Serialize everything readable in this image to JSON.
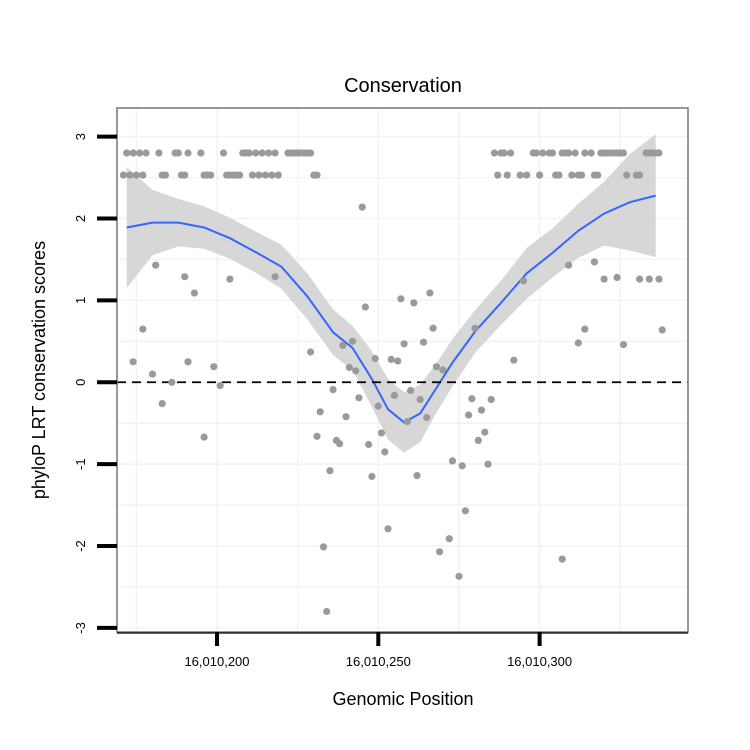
{
  "chart_data": {
    "type": "scatter",
    "title": "Conservation",
    "xlabel": "Genomic Position",
    "ylabel": "phyloP LRT conservation scores",
    "xlim": [
      16010169,
      16010346
    ],
    "ylim": [
      -3.05,
      3.35
    ],
    "x_ticks": [
      16010200,
      16010250,
      16010300
    ],
    "x_tick_labels": [
      "16,010,200",
      "16,010,250",
      "16,010,300"
    ],
    "y_ticks": [
      -3,
      -2,
      -1,
      0,
      1,
      2,
      3
    ],
    "y_tick_labels": [
      "-3",
      "-2",
      "-1",
      "0",
      "1",
      "2",
      "3"
    ],
    "reference_line": {
      "y": 0,
      "style": "dashed"
    },
    "grid": true,
    "colors": {
      "points": "#9a9a9a",
      "smooth_line": "#3366ff",
      "confidence_band": "#d3d3d3",
      "panel_border": "#7f7f7f",
      "grid": "#f2f2f2"
    },
    "points": [
      {
        "x": 16010171,
        "y": 2.53
      },
      {
        "x": 16010172,
        "y": 2.8
      },
      {
        "x": 16010173,
        "y": 2.53
      },
      {
        "x": 16010174,
        "y": 2.8
      },
      {
        "x": 16010175,
        "y": 2.53
      },
      {
        "x": 16010176,
        "y": 2.8
      },
      {
        "x": 16010177,
        "y": 2.53
      },
      {
        "x": 16010178,
        "y": 2.8
      },
      {
        "x": 16010182,
        "y": 2.8
      },
      {
        "x": 16010183,
        "y": 2.53
      },
      {
        "x": 16010184,
        "y": 2.53
      },
      {
        "x": 16010187,
        "y": 2.8
      },
      {
        "x": 16010188,
        "y": 2.8
      },
      {
        "x": 16010189,
        "y": 2.53
      },
      {
        "x": 16010190,
        "y": 2.53
      },
      {
        "x": 16010191,
        "y": 2.8
      },
      {
        "x": 16010195,
        "y": 2.8
      },
      {
        "x": 16010196,
        "y": 2.53
      },
      {
        "x": 16010197,
        "y": 2.53
      },
      {
        "x": 16010198,
        "y": 2.53
      },
      {
        "x": 16010202,
        "y": 2.8
      },
      {
        "x": 16010203,
        "y": 2.53
      },
      {
        "x": 16010204,
        "y": 2.53
      },
      {
        "x": 16010205,
        "y": 2.53
      },
      {
        "x": 16010206,
        "y": 2.53
      },
      {
        "x": 16010207,
        "y": 2.53
      },
      {
        "x": 16010208,
        "y": 2.8
      },
      {
        "x": 16010209,
        "y": 2.8
      },
      {
        "x": 16010210,
        "y": 2.8
      },
      {
        "x": 16010211,
        "y": 2.53
      },
      {
        "x": 16010212,
        "y": 2.8
      },
      {
        "x": 16010213,
        "y": 2.53
      },
      {
        "x": 16010214,
        "y": 2.8
      },
      {
        "x": 16010215,
        "y": 2.53
      },
      {
        "x": 16010216,
        "y": 2.8
      },
      {
        "x": 16010217,
        "y": 2.53
      },
      {
        "x": 16010218,
        "y": 2.8
      },
      {
        "x": 16010219,
        "y": 2.53
      },
      {
        "x": 16010222,
        "y": 2.8
      },
      {
        "x": 16010223,
        "y": 2.8
      },
      {
        "x": 16010224,
        "y": 2.8
      },
      {
        "x": 16010225,
        "y": 2.8
      },
      {
        "x": 16010226,
        "y": 2.8
      },
      {
        "x": 16010227,
        "y": 2.8
      },
      {
        "x": 16010228,
        "y": 2.8
      },
      {
        "x": 16010229,
        "y": 2.8
      },
      {
        "x": 16010230,
        "y": 2.53
      },
      {
        "x": 16010231,
        "y": 2.53
      },
      {
        "x": 16010286,
        "y": 2.8
      },
      {
        "x": 16010287,
        "y": 2.53
      },
      {
        "x": 16010288,
        "y": 2.8
      },
      {
        "x": 16010289,
        "y": 2.8
      },
      {
        "x": 16010290,
        "y": 2.53
      },
      {
        "x": 16010291,
        "y": 2.8
      },
      {
        "x": 16010294,
        "y": 2.53
      },
      {
        "x": 16010296,
        "y": 2.53
      },
      {
        "x": 16010298,
        "y": 2.8
      },
      {
        "x": 16010299,
        "y": 2.8
      },
      {
        "x": 16010300,
        "y": 2.53
      },
      {
        "x": 16010301,
        "y": 2.8
      },
      {
        "x": 16010303,
        "y": 2.8
      },
      {
        "x": 16010304,
        "y": 2.8
      },
      {
        "x": 16010305,
        "y": 2.53
      },
      {
        "x": 16010306,
        "y": 2.53
      },
      {
        "x": 16010307,
        "y": 2.8
      },
      {
        "x": 16010308,
        "y": 2.8
      },
      {
        "x": 16010309,
        "y": 2.8
      },
      {
        "x": 16010310,
        "y": 2.53
      },
      {
        "x": 16010311,
        "y": 2.8
      },
      {
        "x": 16010312,
        "y": 2.53
      },
      {
        "x": 16010313,
        "y": 2.53
      },
      {
        "x": 16010314,
        "y": 2.8
      },
      {
        "x": 16010316,
        "y": 2.8
      },
      {
        "x": 16010317,
        "y": 2.53
      },
      {
        "x": 16010318,
        "y": 2.53
      },
      {
        "x": 16010319,
        "y": 2.8
      },
      {
        "x": 16010320,
        "y": 2.8
      },
      {
        "x": 16010321,
        "y": 2.8
      },
      {
        "x": 16010322,
        "y": 2.8
      },
      {
        "x": 16010323,
        "y": 2.8
      },
      {
        "x": 16010324,
        "y": 2.8
      },
      {
        "x": 16010325,
        "y": 2.8
      },
      {
        "x": 16010326,
        "y": 2.8
      },
      {
        "x": 16010327,
        "y": 2.53
      },
      {
        "x": 16010330,
        "y": 2.53
      },
      {
        "x": 16010331,
        "y": 2.53
      },
      {
        "x": 16010333,
        "y": 2.8
      },
      {
        "x": 16010334,
        "y": 2.8
      },
      {
        "x": 16010335,
        "y": 2.8
      },
      {
        "x": 16010336,
        "y": 2.8
      },
      {
        "x": 16010337,
        "y": 2.8
      },
      {
        "x": 16010174,
        "y": 0.25
      },
      {
        "x": 16010177,
        "y": 0.65
      },
      {
        "x": 16010180,
        "y": 0.1
      },
      {
        "x": 16010181,
        "y": 1.43
      },
      {
        "x": 16010183,
        "y": -0.26
      },
      {
        "x": 16010186,
        "y": 0.0
      },
      {
        "x": 16010190,
        "y": 1.29
      },
      {
        "x": 16010191,
        "y": 0.25
      },
      {
        "x": 16010193,
        "y": 1.09
      },
      {
        "x": 16010196,
        "y": -0.67
      },
      {
        "x": 16010199,
        "y": 0.19
      },
      {
        "x": 16010201,
        "y": -0.04
      },
      {
        "x": 16010204,
        "y": 1.26
      },
      {
        "x": 16010218,
        "y": 1.29
      },
      {
        "x": 16010229,
        "y": 0.37
      },
      {
        "x": 16010231,
        "y": -0.66
      },
      {
        "x": 16010232,
        "y": -0.36
      },
      {
        "x": 16010233,
        "y": -2.01
      },
      {
        "x": 16010234,
        "y": -2.8
      },
      {
        "x": 16010235,
        "y": -1.08
      },
      {
        "x": 16010236,
        "y": -0.09
      },
      {
        "x": 16010237,
        "y": -0.71
      },
      {
        "x": 16010238,
        "y": -0.75
      },
      {
        "x": 16010239,
        "y": 0.45
      },
      {
        "x": 16010240,
        "y": -0.42
      },
      {
        "x": 16010241,
        "y": 0.18
      },
      {
        "x": 16010242,
        "y": 0.5
      },
      {
        "x": 16010243,
        "y": 0.14
      },
      {
        "x": 16010244,
        "y": -0.19
      },
      {
        "x": 16010245,
        "y": 2.14
      },
      {
        "x": 16010246,
        "y": 0.92
      },
      {
        "x": 16010247,
        "y": -0.76
      },
      {
        "x": 16010248,
        "y": -1.15
      },
      {
        "x": 16010249,
        "y": 0.29
      },
      {
        "x": 16010250,
        "y": -0.29
      },
      {
        "x": 16010251,
        "y": -0.62
      },
      {
        "x": 16010252,
        "y": -0.85
      },
      {
        "x": 16010253,
        "y": -1.79
      },
      {
        "x": 16010254,
        "y": 0.28
      },
      {
        "x": 16010255,
        "y": -0.16
      },
      {
        "x": 16010256,
        "y": 0.26
      },
      {
        "x": 16010257,
        "y": 1.02
      },
      {
        "x": 16010258,
        "y": 0.47
      },
      {
        "x": 16010259,
        "y": -0.48
      },
      {
        "x": 16010260,
        "y": -0.1
      },
      {
        "x": 16010261,
        "y": 0.97
      },
      {
        "x": 16010262,
        "y": -1.14
      },
      {
        "x": 16010263,
        "y": -0.21
      },
      {
        "x": 16010264,
        "y": 0.49
      },
      {
        "x": 16010265,
        "y": -0.43
      },
      {
        "x": 16010266,
        "y": 1.09
      },
      {
        "x": 16010267,
        "y": 0.66
      },
      {
        "x": 16010268,
        "y": 0.19
      },
      {
        "x": 16010269,
        "y": -2.07
      },
      {
        "x": 16010270,
        "y": 0.15
      },
      {
        "x": 16010272,
        "y": -1.91
      },
      {
        "x": 16010273,
        "y": -0.96
      },
      {
        "x": 16010275,
        "y": -2.37
      },
      {
        "x": 16010276,
        "y": -1.02
      },
      {
        "x": 16010277,
        "y": -1.57
      },
      {
        "x": 16010278,
        "y": -0.4
      },
      {
        "x": 16010279,
        "y": -0.2
      },
      {
        "x": 16010280,
        "y": 0.66
      },
      {
        "x": 16010281,
        "y": -0.71
      },
      {
        "x": 16010282,
        "y": -0.34
      },
      {
        "x": 16010283,
        "y": -0.61
      },
      {
        "x": 16010284,
        "y": -1.0
      },
      {
        "x": 16010285,
        "y": -0.21
      },
      {
        "x": 16010292,
        "y": 0.27
      },
      {
        "x": 16010295,
        "y": 1.24
      },
      {
        "x": 16010307,
        "y": -2.16
      },
      {
        "x": 16010309,
        "y": 1.43
      },
      {
        "x": 16010312,
        "y": 0.48
      },
      {
        "x": 16010314,
        "y": 0.65
      },
      {
        "x": 16010317,
        "y": 1.47
      },
      {
        "x": 16010320,
        "y": 1.26
      },
      {
        "x": 16010324,
        "y": 1.28
      },
      {
        "x": 16010326,
        "y": 0.46
      },
      {
        "x": 16010331,
        "y": 1.26
      },
      {
        "x": 16010334,
        "y": 1.26
      },
      {
        "x": 16010337,
        "y": 1.26
      },
      {
        "x": 16010338,
        "y": 0.64
      }
    ],
    "smooth": {
      "x": [
        16010172,
        16010180,
        16010188,
        16010196,
        16010204,
        16010212,
        16010220,
        16010228,
        16010236,
        16010242,
        16010248,
        16010253,
        16010258,
        16010263,
        16010268,
        16010273,
        16010280,
        16010288,
        16010296,
        16010304,
        16010312,
        16010320,
        16010328,
        16010336
      ],
      "y": [
        1.89,
        1.95,
        1.95,
        1.89,
        1.76,
        1.59,
        1.41,
        1.05,
        0.61,
        0.42,
        0.04,
        -0.33,
        -0.49,
        -0.38,
        -0.07,
        0.24,
        0.62,
        0.97,
        1.33,
        1.58,
        1.85,
        2.06,
        2.2,
        2.28
      ],
      "lower": [
        1.15,
        1.55,
        1.66,
        1.63,
        1.51,
        1.34,
        1.14,
        0.77,
        0.33,
        0.15,
        -0.3,
        -0.7,
        -0.86,
        -0.73,
        -0.37,
        -0.05,
        0.36,
        0.7,
        1.02,
        1.28,
        1.52,
        1.67,
        1.61,
        1.53
      ],
      "upper": [
        2.63,
        2.35,
        2.24,
        2.15,
        2.01,
        1.84,
        1.68,
        1.33,
        0.89,
        0.69,
        0.38,
        0.04,
        -0.12,
        -0.03,
        0.23,
        0.53,
        0.88,
        1.24,
        1.64,
        1.88,
        2.18,
        2.45,
        2.79,
        3.03
      ]
    }
  }
}
